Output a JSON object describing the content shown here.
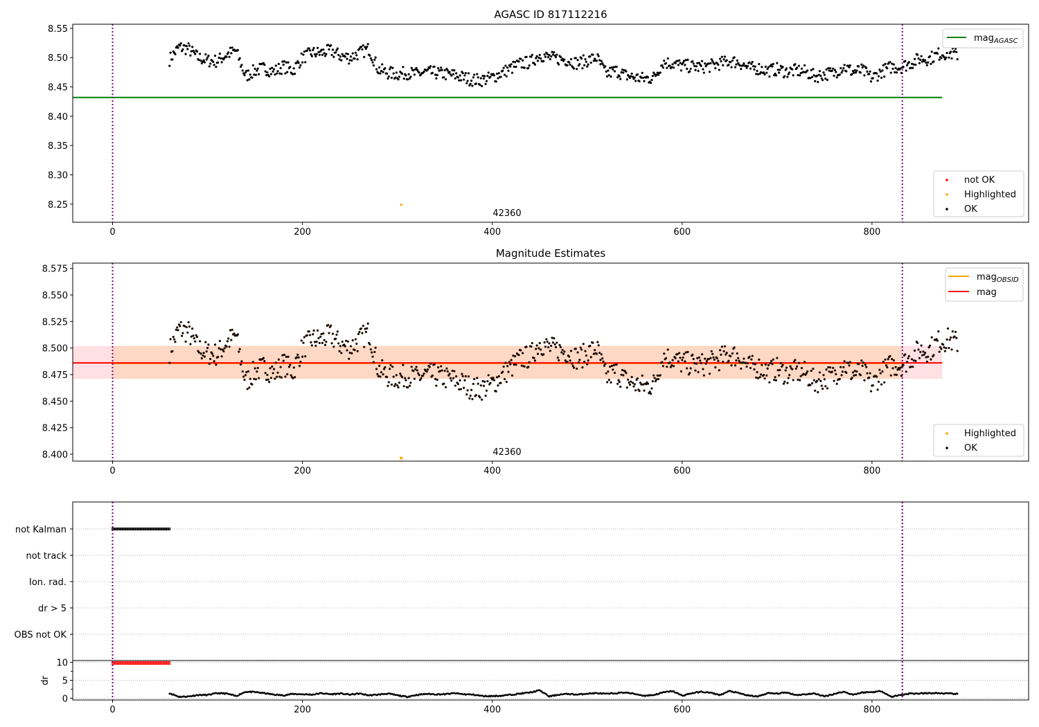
{
  "chart_data": [
    {
      "type": "scatter",
      "title": "AGASC ID 817112216",
      "xlim": [
        -42,
        965
      ],
      "ylim": [
        8.219,
        8.557
      ],
      "xticks": [
        "0",
        "200",
        "400",
        "600",
        "800"
      ],
      "xtick_values": [
        0,
        200,
        400,
        600,
        800
      ],
      "yticks": [
        "8.25",
        "8.30",
        "8.35",
        "8.40",
        "8.45",
        "8.50",
        "8.55"
      ],
      "ytick_values": [
        8.25,
        8.3,
        8.35,
        8.4,
        8.45,
        8.5,
        8.55
      ],
      "vlines": [
        0,
        832
      ],
      "hline": {
        "name": "mag_AGASC",
        "value": 8.432,
        "x_range": [
          -42,
          874
        ],
        "color": "#008000"
      },
      "annotation": {
        "text": "42360",
        "x": 400,
        "y": 8.229
      },
      "series": [
        {
          "name": "OK",
          "color": "#000000",
          "x_start": 60,
          "x_step": 10,
          "values": [
            8.497,
            8.518,
            8.515,
            8.5,
            8.495,
            8.494,
            8.505,
            8.512,
            8.468,
            8.478,
            8.482,
            8.476,
            8.485,
            8.478,
            8.5,
            8.508,
            8.508,
            8.512,
            8.503,
            8.5,
            8.508,
            8.515,
            8.48,
            8.474,
            8.472,
            8.474,
            8.472,
            8.475,
            8.474,
            8.472,
            8.47,
            8.466,
            8.462,
            8.462,
            8.466,
            8.474,
            8.482,
            8.49,
            8.492,
            8.505,
            8.5,
            8.498,
            8.496,
            8.49,
            8.495,
            8.5,
            8.472,
            8.478,
            8.47,
            8.466,
            8.464,
            8.466,
            8.492,
            8.49,
            8.486,
            8.485,
            8.484,
            8.486,
            8.49,
            8.494,
            8.492,
            8.482,
            8.482,
            8.478,
            8.48,
            8.476,
            8.478,
            8.476,
            8.468,
            8.472,
            8.474,
            8.485,
            8.476,
            8.478,
            8.465,
            8.476,
            8.484,
            8.484,
            8.49,
            8.498,
            8.498,
            8.506,
            8.508,
            8.505
          ]
        },
        {
          "name": "Highlighted",
          "color": "#ffa500",
          "points": [
            [
              304,
              8.249
            ]
          ]
        },
        {
          "name": "not OK",
          "color": "#ff0000",
          "points": []
        }
      ],
      "legend_upper": [
        {
          "label": "mag",
          "sub": "AGASC",
          "color": "#008000"
        }
      ],
      "legend_lower": [
        {
          "label": "not OK",
          "color": "#ff0000"
        },
        {
          "label": "Highlighted",
          "color": "#ffa500"
        },
        {
          "label": "OK",
          "color": "#000000"
        }
      ]
    },
    {
      "type": "scatter",
      "title": "Magnitude Estimates",
      "xlim": [
        -42,
        965
      ],
      "ylim": [
        8.3935,
        8.58
      ],
      "xticks": [
        "0",
        "200",
        "400",
        "600",
        "800"
      ],
      "xtick_values": [
        0,
        200,
        400,
        600,
        800
      ],
      "yticks": [
        "8.400",
        "8.425",
        "8.450",
        "8.475",
        "8.500",
        "8.525",
        "8.550",
        "8.575"
      ],
      "ytick_values": [
        8.4,
        8.425,
        8.45,
        8.475,
        8.5,
        8.525,
        8.55,
        8.575
      ],
      "vlines": [
        0,
        832
      ],
      "mag": {
        "value": 8.486,
        "band": [
          8.471,
          8.502
        ],
        "x_range": [
          -42,
          874
        ],
        "color": "#ff0000",
        "band_color": "#ffe0e3"
      },
      "mag_obsid": {
        "value": 8.4855,
        "band": [
          8.471,
          8.502
        ],
        "x_range": [
          0,
          832
        ],
        "color": "#ffa500",
        "band_color": "#fdd8c4"
      },
      "annotation": {
        "text": "42360",
        "x": 400,
        "y": 8.397
      },
      "series": [
        {
          "name": "OK",
          "color": "#000000",
          "ref": "same as upper panel OK series"
        },
        {
          "name": "Highlighted",
          "color": "#ffa500",
          "points": [
            [
              304,
              8.3955
            ]
          ]
        }
      ],
      "legend_upper": [
        {
          "label": "mag",
          "sub": "OBSID",
          "color": "#ffa500"
        },
        {
          "label": "mag",
          "sub": "",
          "color": "#ff0000"
        }
      ],
      "legend_lower": [
        {
          "label": "Highlighted",
          "color": "#ffa500"
        },
        {
          "label": "OK",
          "color": "#000000"
        }
      ]
    },
    {
      "type": "scatter",
      "title": "",
      "categories": [
        "not Kalman",
        "not track",
        "Ion. rad.",
        "dr > 5",
        "OBS not OK"
      ],
      "flags": [
        {
          "category": "not Kalman",
          "x_range": [
            0,
            60
          ]
        }
      ],
      "vlines": [
        0,
        832
      ],
      "xlim": [
        -42,
        965
      ]
    },
    {
      "type": "scatter",
      "title": "",
      "ylabel": "dr",
      "xlim": [
        -42,
        965
      ],
      "ylim": [
        -0.5,
        10.5
      ],
      "xticks": [
        "0",
        "200",
        "400",
        "600",
        "800"
      ],
      "xtick_values": [
        0,
        200,
        400,
        600,
        800
      ],
      "yticks": [
        "0",
        "5",
        "10"
      ],
      "ytick_values": [
        0,
        5,
        10
      ],
      "vlines": [
        0,
        832
      ],
      "series": [
        {
          "name": "dr > 5",
          "color": "#ff0000",
          "x_range": [
            0,
            60
          ],
          "value": 9.8
        },
        {
          "name": "dr",
          "color": "#000000",
          "x_start": 60,
          "x_step": 10,
          "values": [
            1.4,
            0.4,
            0.5,
            0.9,
            0.9,
            1.4,
            1.3,
            0.6,
            1.8,
            1.7,
            1.4,
            1.0,
            0.8,
            1.2,
            1.1,
            1.0,
            1.4,
            1.1,
            1.3,
            1.0,
            1.3,
            0.8,
            1.0,
            1.3,
            0.8,
            0.4,
            0.9,
            1.2,
            1.1,
            1.1,
            1.4,
            1.1,
            1.0,
            0.6,
            0.6,
            0.7,
            1.0,
            1.3,
            1.6,
            2.2,
            0.5,
            1.0,
            1.2,
            1.0,
            1.3,
            1.4,
            1.2,
            1.4,
            1.6,
            1.2,
            0.7,
            0.9,
            1.6,
            2.0,
            0.7,
            1.4,
            1.8,
            1.5,
            0.9,
            2.0,
            1.4,
            0.7,
            0.5,
            1.4,
            1.3,
            1.6,
            0.9,
            1.1,
            1.3,
            0.5,
            1.2,
            1.8,
            1.0,
            1.6,
            1.7,
            2.0,
            0.4,
            0.9,
            1.3,
            1.3,
            1.4,
            1.4,
            1.3,
            1.2
          ]
        }
      ]
    }
  ]
}
